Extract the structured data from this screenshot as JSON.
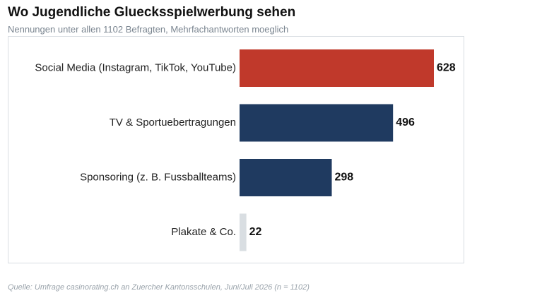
{
  "title": "Wo Jugendliche Gluecksspielwerbung sehen",
  "subtitle": "Nennungen unter allen 1102 Befragten, Mehrfachantworten moeglich",
  "source": "Quelle: Umfrage casinorating.ch an Zuercher Kantonsschulen, Juni/Juli 2026 (n = 1102)",
  "chart_data": {
    "type": "bar",
    "orientation": "horizontal",
    "categories": [
      "Social Media (Instagram, TikTok, YouTube)",
      "TV & Sportuebertragungen",
      "Sponsoring (z. B. Fussballteams)",
      "Plakate & Co."
    ],
    "values": [
      628,
      496,
      298,
      22
    ],
    "data_labels": [
      "628",
      "496",
      "298",
      "22"
    ],
    "colors": [
      "#c0392b",
      "#1f3a60",
      "#1f3a60",
      "#d9dee2"
    ],
    "grid": false,
    "legend": "none"
  }
}
